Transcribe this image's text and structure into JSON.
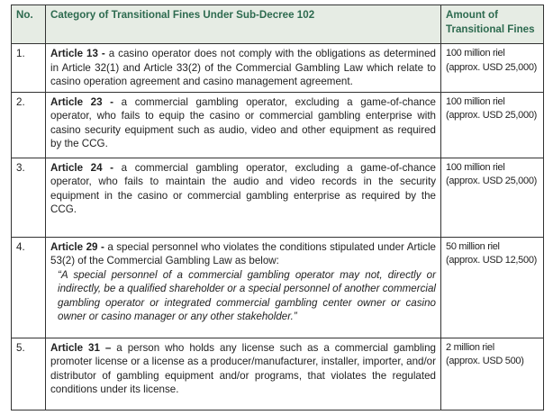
{
  "header": {
    "no": "No.",
    "category": "Category of Transitional Fines Under Sub-Decree 102",
    "amount": "Amount of Transitional Fines"
  },
  "rows": [
    {
      "no": "1.",
      "article": "Article 13 -",
      "text": " a casino operator does not comply with the obligations as determined in Article 32(1) and Article 33(2) of the Commercial Gambling Law which relate to casino operation agreement and casino management agreement.",
      "quote": "",
      "amount": "100 million riel",
      "approx": "(approx. USD 25,000)"
    },
    {
      "no": "2.",
      "article": "Article 23 -",
      "text": " a commercial gambling operator, excluding a game-of-chance operator, who fails to equip the casino or commercial gambling enterprise with casino security equipment such as audio, video and other equipment as required by the CCG.",
      "quote": "",
      "amount": "100 million riel",
      "approx": "(approx. USD 25,000)"
    },
    {
      "no": "3.",
      "article": "Article 24 -",
      "text": " a commercial gambling operator, excluding a game-of-chance operator, who fails to maintain the audio and video records in the security equipment in the casino or commercial gambling enterprise as required by the CCG.",
      "quote": "",
      "amount": "100 million riel",
      "approx": "(approx. USD 25,000)"
    },
    {
      "no": "4.",
      "article": "Article 29 -",
      "text": " a special personnel who violates the conditions stipulated under Article 53(2) of the Commercial Gambling Law as below:",
      "quote": "“A special personnel of a commercial gambling operator may not, directly or indirectly, be a qualified shareholder or a special personnel of another commercial gambling operator or integrated commercial gambling center owner or casino owner or casino manager or any other stakeholder.”",
      "amount": "50 million riel",
      "approx": "(approx. USD 12,500)"
    },
    {
      "no": "5.",
      "article": "Article 31 –",
      "text": " a person who holds any license such as a commercial gambling promoter license or a license as a producer/manufacturer, installer, importer, and/or distributor of gambling equipment and/or programs, that violates the regulated conditions under its license.",
      "quote": "",
      "amount": "2 million riel",
      "approx": "(approx. USD 500)"
    }
  ]
}
